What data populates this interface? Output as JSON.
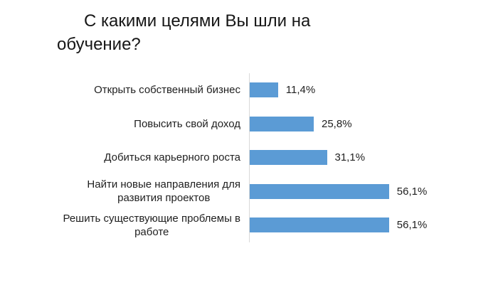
{
  "page": {
    "background": "#FFFFFF"
  },
  "title": {
    "text": "С какими целями Вы шли на\nобучение?",
    "full_text": "С какими целями Вы шли на обучение?"
  },
  "chart_data": {
    "type": "bar",
    "orientation": "horizontal",
    "title": "С какими целями Вы шли на обучение?",
    "categories": [
      "Открыть собственный бизнес",
      "Повысить свой доход",
      "Добиться карьерного роста",
      "Найти новые направления для развития проектов",
      "Решить существующие проблемы в работе"
    ],
    "categories_display": [
      "Открыть собственный бизнес",
      "Повысить свой доход",
      "Добиться карьерного роста",
      "Найти новые направления для\nразвития проектов",
      "Решить существующие проблемы в\nработе"
    ],
    "values": [
      11.4,
      25.8,
      31.1,
      56.1,
      56.1
    ],
    "value_labels": [
      "11,4%",
      "25,8%",
      "31,1%",
      "56,1%",
      "56,1%"
    ],
    "xlim": [
      0,
      60
    ],
    "grid": false,
    "legend": false,
    "data_labels_position": "outside-end",
    "bar_color": "#5B9BD5",
    "axis_line_color": "#D9D9D9",
    "text_color": "#1F1F1F"
  }
}
